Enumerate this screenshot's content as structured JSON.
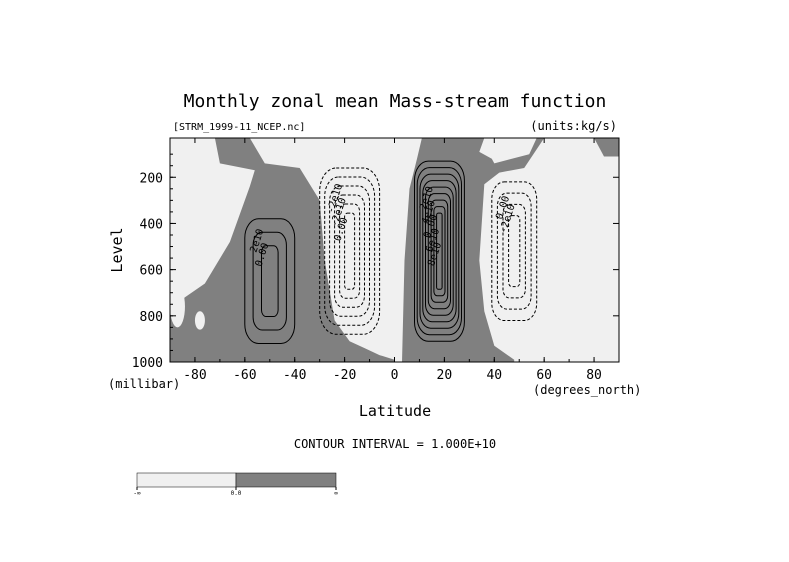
{
  "chart_data": {
    "type": "contour",
    "title": "Monthly zonal mean Mass-stream function",
    "subtitle_left": "[STRM_1999-11_NCEP.nc]",
    "subtitle_right": "(units:kg/s)",
    "xlabel": "Latitude",
    "ylabel": "Level",
    "x_unit": "(degrees_north)",
    "y_unit": "(millibar)",
    "xlim": [
      -90,
      90
    ],
    "ylim": [
      1000,
      30
    ],
    "x_ticks": [
      -80,
      -60,
      -40,
      -20,
      0,
      20,
      40,
      60,
      80
    ],
    "y_ticks": [
      200,
      400,
      600,
      800,
      1000
    ],
    "contour_interval_text": "CONTOUR INTERVAL = 1.000E+10",
    "contour_interval": 10000000000,
    "fill_colors": {
      "positive": "#808080",
      "negative": "#f0f0f0"
    },
    "cells": [
      {
        "name": "southern-positive-cell",
        "sign": "positive",
        "center": [
          -50,
          650
        ],
        "half_width_deg": 10,
        "half_height_mb": 270,
        "levels": 3,
        "labels": [
          "2e10",
          "0.00"
        ]
      },
      {
        "name": "southern-negative-cell",
        "sign": "negative",
        "center": [
          -18,
          520
        ],
        "half_width_deg": 12,
        "half_height_mb": 360,
        "levels": 6,
        "labels": [
          "-2e10",
          "-2e10",
          "0.00"
        ]
      },
      {
        "name": "tropical-positive-cell",
        "sign": "positive",
        "center": [
          18,
          520
        ],
        "half_width_deg": 10,
        "half_height_mb": 390,
        "levels": 9,
        "labels": [
          "2e10",
          "4e10",
          "0.00",
          "6e10",
          "8e10"
        ]
      },
      {
        "name": "northern-negative-cell",
        "sign": "negative",
        "center": [
          48,
          520
        ],
        "half_width_deg": 9,
        "half_height_mb": 300,
        "levels": 4,
        "labels": [
          "0.00",
          "-2e10"
        ]
      }
    ],
    "colorbar": {
      "tick_labels": [
        "-∞",
        "0.0",
        "∞"
      ],
      "colors": [
        "#f0f0f0",
        "#808080"
      ]
    }
  }
}
